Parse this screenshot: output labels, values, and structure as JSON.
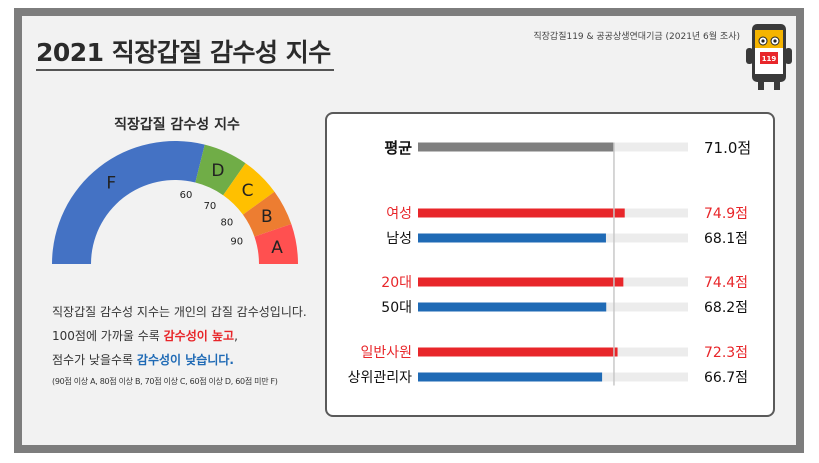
{
  "title": "2021 직장갑질 감수성 지수",
  "source": "직장갑질119 & 공공상생연대기금 (2021년 6월 조사)",
  "mascot": {
    "icon": "mascot-phone-icon",
    "badge": "119"
  },
  "gauge": {
    "title": "직장갑질 감수성 지수",
    "grades": [
      {
        "label": "F",
        "color": "#4472c4"
      },
      {
        "label": "D",
        "color": "#70ad47"
      },
      {
        "label": "C",
        "color": "#ffc000"
      },
      {
        "label": "B",
        "color": "#ed7d31"
      },
      {
        "label": "A",
        "color": "#ff5050"
      }
    ],
    "thresholds": [
      "60",
      "70",
      "80",
      "90"
    ]
  },
  "description": {
    "line1": "직장갑질 감수성 지수는 개인의 갑질 감수성입니다.",
    "line2_prefix": "100점에 가까울 수록 ",
    "line2_highlight": "감수성이 높고",
    "line2_suffix": ",",
    "line3_prefix": "점수가 낮을수록 ",
    "line3_highlight": "감수성이 낮습니다.",
    "note": "(90점 이상 A, 80점 이상 B, 70점 이상 C, 60점 이상 D, 60점 미만 F)"
  },
  "chart_data": {
    "type": "bar",
    "orientation": "horizontal",
    "xlim": [
      0,
      100
    ],
    "categories": [
      "평균",
      "여성",
      "남성",
      "20대",
      "50대",
      "일반사원",
      "상위관리자"
    ],
    "values": [
      71.0,
      74.9,
      68.1,
      74.4,
      68.2,
      72.3,
      66.7
    ],
    "value_labels": [
      "71.0점",
      "74.9점",
      "68.1점",
      "74.4점",
      "68.2점",
      "72.3점",
      "66.7점"
    ],
    "colors": [
      "#7f7f7f",
      "#e8262a",
      "#1f6ab5",
      "#e8262a",
      "#1f6ab5",
      "#e8262a",
      "#1f6ab5"
    ],
    "label_colors": [
      "#111111",
      "#e8262a",
      "#111111",
      "#e8262a",
      "#111111",
      "#e8262a",
      "#111111"
    ],
    "reference_line": 71.0
  }
}
